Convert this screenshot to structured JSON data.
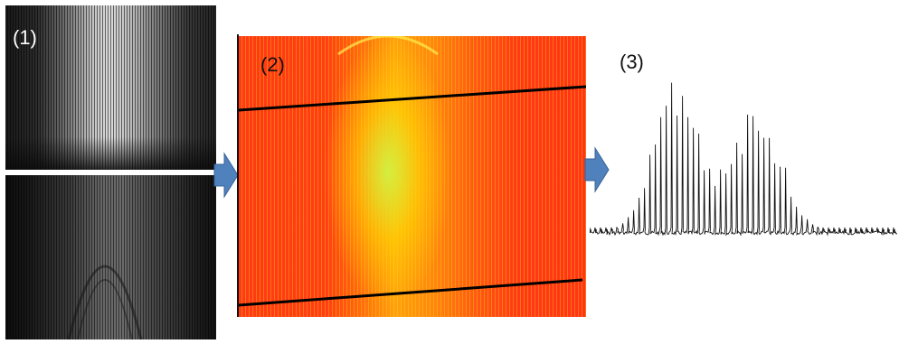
{
  "panels": {
    "p1": {
      "label": "(1)"
    },
    "p2": {
      "label": "(2)"
    },
    "p3": {
      "label": "(3)"
    }
  },
  "colors": {
    "arrow_fill": "#4f81bd",
    "arrow_stroke": "#3a6396",
    "line": "#000000",
    "spectrum": "#111111"
  }
}
